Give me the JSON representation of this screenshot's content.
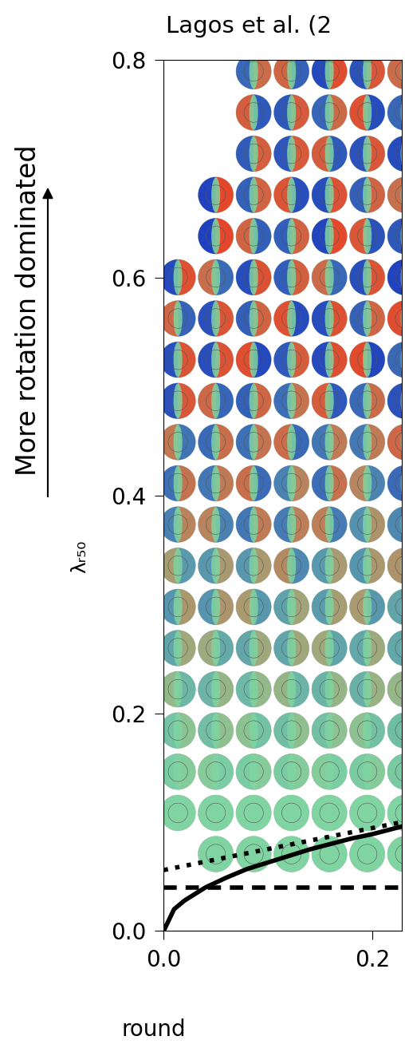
{
  "chart_data": {
    "type": "line",
    "title": "Lagos et al. (2",
    "ylabel": "λᵣ₅₀",
    "annotations": [
      "More rotation dominated",
      "round"
    ],
    "xlim": [
      0,
      0.228
    ],
    "ylim": [
      0,
      0.8
    ],
    "xticks": [
      {
        "value": 0,
        "label": "0.0"
      },
      {
        "value": 0.2,
        "label": "0.2"
      }
    ],
    "yticks": [
      {
        "value": 0,
        "label": "0.0"
      },
      {
        "value": 0.2,
        "label": "0.2"
      },
      {
        "value": 0.4,
        "label": "0.4"
      },
      {
        "value": 0.6,
        "label": "0.6"
      },
      {
        "value": 0.8,
        "label": "0.8"
      }
    ],
    "series": [
      {
        "color": "#000000",
        "line_style": "solid",
        "x": [
          0,
          0.01,
          0.02,
          0.04,
          0.06,
          0.08,
          0.1,
          0.12,
          0.14,
          0.16,
          0.18,
          0.2,
          0.228
        ],
        "values": [
          0,
          0.02,
          0.028,
          0.04,
          0.049,
          0.057,
          0.063,
          0.069,
          0.075,
          0.08,
          0.085,
          0.089,
          0.096
        ]
      },
      {
        "color": "#000000",
        "line_style": "dotted",
        "x": [
          0,
          0.228
        ],
        "values": [
          0.056,
          0.1
        ]
      },
      {
        "color": "#000000",
        "line_style": "dashed",
        "x": [
          0,
          0.228
        ],
        "values": [
          0.04,
          0.04
        ]
      }
    ]
  }
}
